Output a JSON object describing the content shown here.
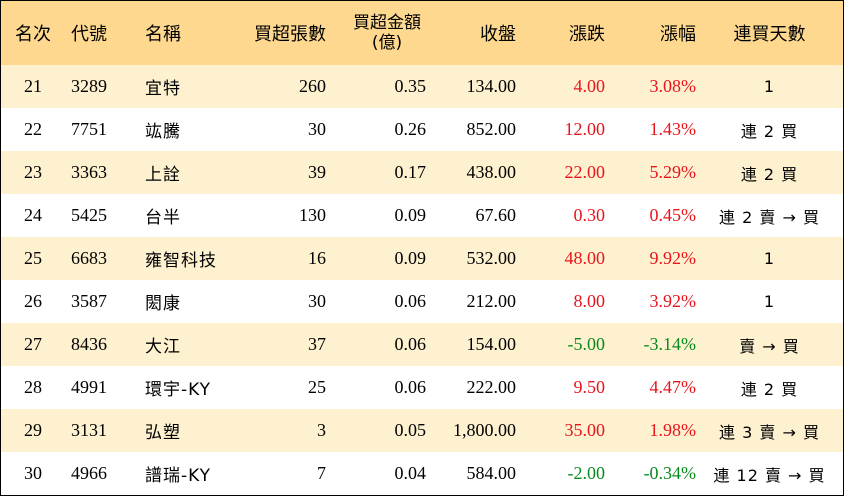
{
  "colors": {
    "header_bg": "#fed88f",
    "alt_row_bg": "#fef1cf",
    "up": "#e8141c",
    "down": "#0a8a1e"
  },
  "headers": {
    "rank": "名次",
    "code": "代號",
    "name": "名稱",
    "net_buy_lots": "買超張數",
    "net_buy_amount_line1": "買超金額",
    "net_buy_amount_line2": "(億)",
    "close": "收盤",
    "change": "漲跌",
    "change_pct": "漲幅",
    "streak": "連買天數"
  },
  "rows": [
    {
      "rank": "21",
      "code": "3289",
      "name": "宜特",
      "lots": "260",
      "amount": "0.35",
      "close": "134.00",
      "change": "4.00",
      "pct": "3.08%",
      "dir": "up",
      "streak": "1"
    },
    {
      "rank": "22",
      "code": "7751",
      "name": "竑騰",
      "lots": "30",
      "amount": "0.26",
      "close": "852.00",
      "change": "12.00",
      "pct": "1.43%",
      "dir": "up",
      "streak": "連 2 買"
    },
    {
      "rank": "23",
      "code": "3363",
      "name": "上詮",
      "lots": "39",
      "amount": "0.17",
      "close": "438.00",
      "change": "22.00",
      "pct": "5.29%",
      "dir": "up",
      "streak": "連 2 買"
    },
    {
      "rank": "24",
      "code": "5425",
      "name": "台半",
      "lots": "130",
      "amount": "0.09",
      "close": "67.60",
      "change": "0.30",
      "pct": "0.45%",
      "dir": "up",
      "streak": "連 2 賣 → 買"
    },
    {
      "rank": "25",
      "code": "6683",
      "name": "雍智科技",
      "lots": "16",
      "amount": "0.09",
      "close": "532.00",
      "change": "48.00",
      "pct": "9.92%",
      "dir": "up",
      "streak": "1"
    },
    {
      "rank": "26",
      "code": "3587",
      "name": "閎康",
      "lots": "30",
      "amount": "0.06",
      "close": "212.00",
      "change": "8.00",
      "pct": "3.92%",
      "dir": "up",
      "streak": "1"
    },
    {
      "rank": "27",
      "code": "8436",
      "name": "大江",
      "lots": "37",
      "amount": "0.06",
      "close": "154.00",
      "change": "-5.00",
      "pct": "-3.14%",
      "dir": "down",
      "streak": "賣 → 買"
    },
    {
      "rank": "28",
      "code": "4991",
      "name": "環宇-KY",
      "lots": "25",
      "amount": "0.06",
      "close": "222.00",
      "change": "9.50",
      "pct": "4.47%",
      "dir": "up",
      "streak": "連 2 買"
    },
    {
      "rank": "29",
      "code": "3131",
      "name": "弘塑",
      "lots": "3",
      "amount": "0.05",
      "close": "1,800.00",
      "change": "35.00",
      "pct": "1.98%",
      "dir": "up",
      "streak": "連 3 賣 → 買"
    },
    {
      "rank": "30",
      "code": "4966",
      "name": "譜瑞-KY",
      "lots": "7",
      "amount": "0.04",
      "close": "584.00",
      "change": "-2.00",
      "pct": "-0.34%",
      "dir": "down",
      "streak": "連 12 賣 → 買"
    }
  ]
}
